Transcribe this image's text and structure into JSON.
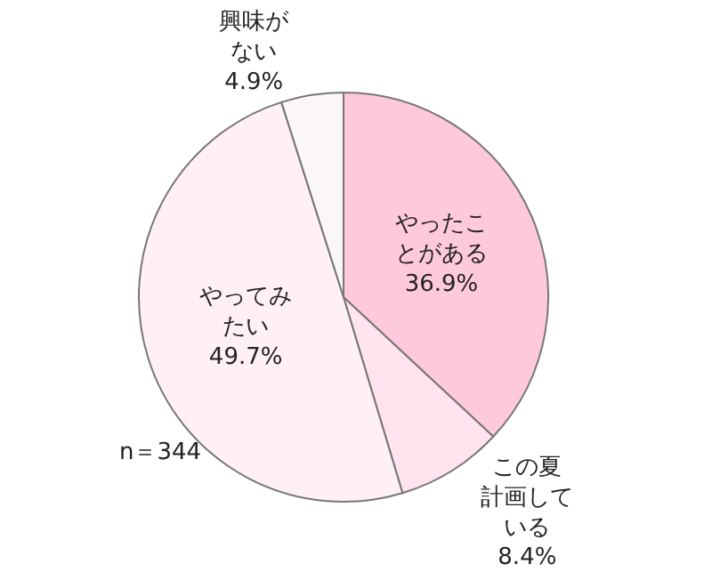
{
  "chart_data": {
    "type": "pie",
    "categories": [
      "やったことがある",
      "この夏計画している",
      "やってみたい",
      "興味がない"
    ],
    "values": [
      36.9,
      8.4,
      49.7,
      4.9
    ],
    "colors": [
      "#ffc9dc",
      "#ffe3ee",
      "#fff0f5",
      "#fbf6f8"
    ],
    "value_labels": [
      "36.9%",
      "8.4%",
      "49.7%",
      "4.9%"
    ],
    "annotations": [
      "n＝344"
    ],
    "legend": false
  }
}
